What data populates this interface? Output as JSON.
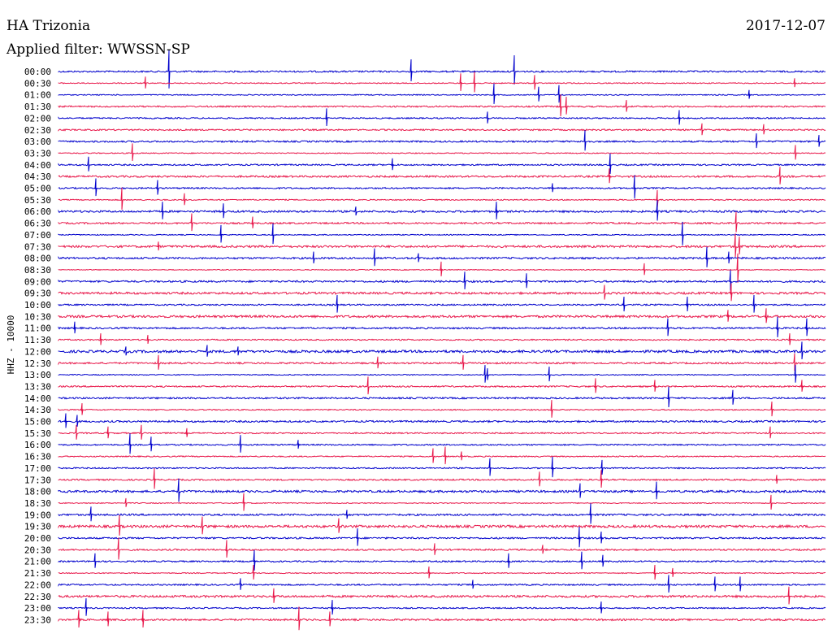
{
  "header": {
    "station": "HA Trizonia",
    "date": "2017-12-07",
    "filter": "Applied filter: WWSSN-SP"
  },
  "chart_data": {
    "type": "line",
    "ylabel": "HHZ - 10000",
    "colors": [
      "#0000cc",
      "#e8174a"
    ],
    "rows": [
      "00:00",
      "00:30",
      "01:00",
      "01:30",
      "02:00",
      "02:30",
      "03:00",
      "03:30",
      "04:00",
      "04:30",
      "05:00",
      "05:30",
      "06:00",
      "06:30",
      "07:00",
      "07:30",
      "08:00",
      "08:30",
      "09:00",
      "09:30",
      "10:00",
      "10:30",
      "11:00",
      "11:30",
      "12:00",
      "12:30",
      "13:00",
      "13:30",
      "14:00",
      "14:30",
      "15:00",
      "15:30",
      "16:00",
      "16:30",
      "17:00",
      "17:30",
      "18:00",
      "18:30",
      "19:00",
      "19:30",
      "20:00",
      "20:30",
      "21:00",
      "21:30",
      "22:00",
      "22:30",
      "23:00",
      "23:30"
    ],
    "noise_level": [
      1.0,
      0.6,
      0.6,
      0.9,
      0.8,
      0.9,
      1.0,
      0.6,
      0.9,
      1.1,
      0.9,
      0.7,
      1.2,
      1.0,
      0.6,
      1.3,
      1.1,
      0.5,
      1.1,
      1.3,
      0.9,
      1.4,
      1.0,
      0.8,
      1.5,
      1.0,
      0.6,
      0.9,
      1.0,
      0.7,
      1.1,
      0.8,
      0.8,
      0.7,
      0.8,
      0.9,
      1.3,
      0.6,
      1.1,
      1.5,
      1.0,
      1.0,
      0.9,
      0.6,
      0.9,
      1.3,
      0.8,
      1.1
    ],
    "spikes": [
      [
        [
          208,
          26
        ],
        [
          506,
          15
        ],
        [
          633,
          20
        ]
      ],
      [
        [
          179,
          8
        ],
        [
          567,
          12
        ],
        [
          584,
          14
        ],
        [
          658,
          10
        ],
        [
          978,
          6
        ]
      ],
      [
        [
          608,
          14
        ],
        [
          663,
          10
        ],
        [
          688,
          12
        ],
        [
          922,
          6
        ]
      ],
      [
        [
          690,
          15
        ],
        [
          697,
          12
        ],
        [
          771,
          8
        ]
      ],
      [
        [
          402,
          12
        ],
        [
          600,
          8
        ],
        [
          836,
          10
        ]
      ],
      [
        [
          864,
          8
        ],
        [
          940,
          7
        ]
      ],
      [
        [
          720,
          14
        ],
        [
          931,
          10
        ],
        [
          1008,
          8
        ]
      ],
      [
        [
          163,
          12
        ],
        [
          979,
          10
        ]
      ],
      [
        [
          109,
          10
        ],
        [
          483,
          8
        ],
        [
          751,
          14
        ]
      ],
      [
        [
          960,
          12
        ],
        [
          750,
          10
        ]
      ],
      [
        [
          118,
          12
        ],
        [
          194,
          10
        ],
        [
          680,
          6
        ],
        [
          781,
          16
        ]
      ],
      [
        [
          150,
          15
        ],
        [
          227,
          8
        ],
        [
          809,
          12
        ]
      ],
      [
        [
          200,
          12
        ],
        [
          275,
          10
        ],
        [
          438,
          6
        ],
        [
          611,
          12
        ],
        [
          809,
          14
        ]
      ],
      [
        [
          236,
          12
        ],
        [
          311,
          8
        ],
        [
          906,
          14
        ]
      ],
      [
        [
          272,
          12
        ],
        [
          336,
          14
        ],
        [
          840,
          16
        ]
      ],
      [
        [
          195,
          6
        ],
        [
          905,
          16
        ],
        [
          910,
          12
        ]
      ],
      [
        [
          386,
          8
        ],
        [
          461,
          12
        ],
        [
          515,
          6
        ],
        [
          870,
          14
        ],
        [
          897,
          8
        ]
      ],
      [
        [
          543,
          10
        ],
        [
          793,
          8
        ],
        [
          908,
          20
        ]
      ],
      [
        [
          572,
          12
        ],
        [
          648,
          10
        ],
        [
          899,
          14
        ]
      ],
      [
        [
          744,
          10
        ],
        [
          900,
          12
        ]
      ],
      [
        [
          415,
          12
        ],
        [
          768,
          10
        ],
        [
          846,
          10
        ],
        [
          928,
          12
        ]
      ],
      [
        [
          896,
          8
        ],
        [
          943,
          10
        ]
      ],
      [
        [
          92,
          8
        ],
        [
          822,
          12
        ],
        [
          957,
          14
        ],
        [
          993,
          12
        ]
      ],
      [
        [
          124,
          8
        ],
        [
          182,
          6
        ],
        [
          972,
          8
        ]
      ],
      [
        [
          155,
          6
        ],
        [
          255,
          8
        ],
        [
          293,
          6
        ],
        [
          987,
          12
        ]
      ],
      [
        [
          195,
          10
        ],
        [
          465,
          8
        ],
        [
          570,
          10
        ],
        [
          978,
          12
        ]
      ],
      [
        [
          597,
          12
        ],
        [
          600,
          8
        ],
        [
          676,
          10
        ],
        [
          979,
          12
        ]
      ],
      [
        [
          453,
          12
        ],
        [
          733,
          10
        ],
        [
          806,
          8
        ],
        [
          987,
          8
        ]
      ],
      [
        [
          823,
          14
        ],
        [
          902,
          10
        ]
      ],
      [
        [
          101,
          8
        ],
        [
          679,
          12
        ],
        [
          950,
          10
        ]
      ],
      [
        [
          81,
          10
        ],
        [
          95,
          8
        ]
      ],
      [
        [
          94,
          10
        ],
        [
          133,
          8
        ],
        [
          174,
          10
        ],
        [
          230,
          6
        ],
        [
          948,
          8
        ]
      ],
      [
        [
          160,
          14
        ],
        [
          186,
          10
        ],
        [
          296,
          12
        ],
        [
          367,
          6
        ]
      ],
      [
        [
          533,
          10
        ],
        [
          548,
          12
        ],
        [
          568,
          6
        ]
      ],
      [
        [
          603,
          12
        ],
        [
          680,
          14
        ],
        [
          741,
          10
        ]
      ],
      [
        [
          190,
          14
        ],
        [
          664,
          10
        ],
        [
          740,
          12
        ],
        [
          956,
          6
        ]
      ],
      [
        [
          220,
          16
        ],
        [
          714,
          10
        ],
        [
          808,
          12
        ]
      ],
      [
        [
          155,
          6
        ],
        [
          300,
          12
        ],
        [
          949,
          10
        ]
      ],
      [
        [
          112,
          10
        ],
        [
          427,
          6
        ],
        [
          727,
          14
        ]
      ],
      [
        [
          147,
          14
        ],
        [
          249,
          12
        ],
        [
          417,
          10
        ]
      ],
      [
        [
          440,
          12
        ],
        [
          713,
          14
        ],
        [
          740,
          8
        ]
      ],
      [
        [
          146,
          15
        ],
        [
          279,
          12
        ],
        [
          535,
          8
        ],
        [
          668,
          6
        ]
      ],
      [
        [
          117,
          10
        ],
        [
          313,
          14
        ],
        [
          626,
          10
        ],
        [
          716,
          12
        ],
        [
          742,
          8
        ]
      ],
      [
        [
          312,
          10
        ],
        [
          528,
          8
        ],
        [
          806,
          10
        ],
        [
          828,
          6
        ]
      ],
      [
        [
          296,
          8
        ],
        [
          582,
          6
        ],
        [
          823,
          12
        ],
        [
          880,
          10
        ],
        [
          911,
          10
        ]
      ],
      [
        [
          337,
          10
        ],
        [
          971,
          12
        ]
      ],
      [
        [
          106,
          12
        ],
        [
          409,
          10
        ],
        [
          740,
          8
        ]
      ],
      [
        [
          97,
          12
        ],
        [
          133,
          10
        ],
        [
          176,
          12
        ],
        [
          368,
          16
        ],
        [
          406,
          10
        ]
      ]
    ]
  }
}
